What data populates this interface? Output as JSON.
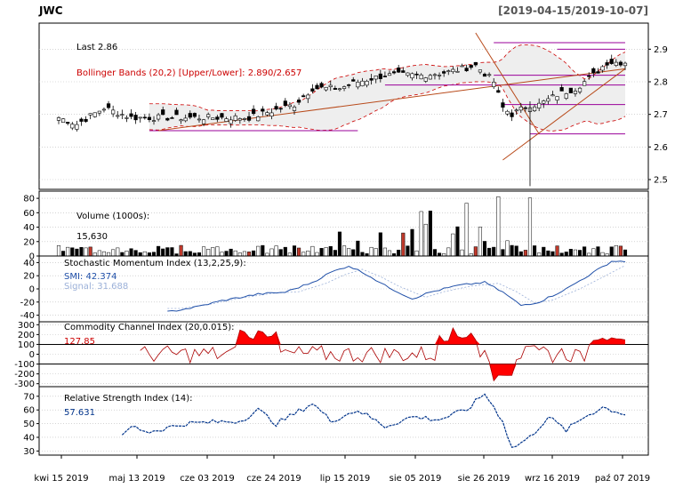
{
  "header": {
    "symbol": "JWC",
    "range": "[2019-04-15/2019-10-07]"
  },
  "x_axis": {
    "tick_labels": [
      "kwi 15 2019",
      "maj 13 2019",
      "cze 03 2019",
      "cze 24 2019",
      "lip 15 2019",
      "sie 05 2019",
      "sie 26 2019",
      "wrz 16 2019",
      "paź 07 2019"
    ]
  },
  "colors": {
    "bollinger": "#cc0000",
    "trend": "#b84a1a",
    "levels": "#990099",
    "smi": "#1f4fa8",
    "smi_signal": "#9bb0d8",
    "cci_fill": "#ff0000",
    "rsi": "#00338a",
    "down_candle": "#000000",
    "up_candle": "#ffffff",
    "vol_red": "#c0392b"
  },
  "chart_data": [
    {
      "type": "line",
      "title": "JWC",
      "panel": "price",
      "annotations": {
        "last": "Last 2.86",
        "bollinger": "Bollinger Bands (20,2) [Upper/Lower]: 2.890/2.657"
      },
      "y_ticks": [
        "2.9",
        "2.8",
        "2.7",
        "2.6",
        "2.5"
      ],
      "ylim": [
        2.47,
        2.98
      ],
      "last_value": 2.86,
      "bb_upper": 2.89,
      "bb_lower": 2.657,
      "levels": [
        2.92,
        2.9,
        2.82,
        2.79,
        2.73,
        2.65,
        2.64
      ]
    },
    {
      "type": "bar",
      "panel": "volume",
      "annotations": {
        "title": "Volume (1000s):",
        "value": "15,630"
      },
      "y_ticks": [
        "80",
        "60",
        "40",
        "20",
        "0"
      ],
      "ylim": [
        0,
        90
      ],
      "last_value": 15.63
    },
    {
      "type": "line",
      "panel": "smi",
      "annotations": {
        "title": "Stochastic Momentum Index (13,2,25,9):",
        "smi": "SMI: 42.374",
        "signal": "Signal: 31.688"
      },
      "y_ticks": [
        "40",
        "20",
        "0",
        "-20",
        "-40"
      ],
      "ylim": [
        -50,
        50
      ]
    },
    {
      "type": "area",
      "panel": "cci",
      "annotations": {
        "title": "Commodity Channel Index (20,0.015):",
        "value": "127.85"
      },
      "y_ticks": [
        "300",
        "200",
        "100",
        "0",
        "-100",
        "-200",
        "-300"
      ],
      "ylim": [
        -330,
        330
      ],
      "reference_lines": [
        100,
        -100
      ]
    },
    {
      "type": "line",
      "panel": "rsi",
      "annotations": {
        "title": "Relative Strength Index (14):",
        "value": "57.631"
      },
      "y_ticks": [
        "70",
        "60",
        "50",
        "40",
        "30"
      ],
      "ylim": [
        27,
        77
      ]
    }
  ]
}
